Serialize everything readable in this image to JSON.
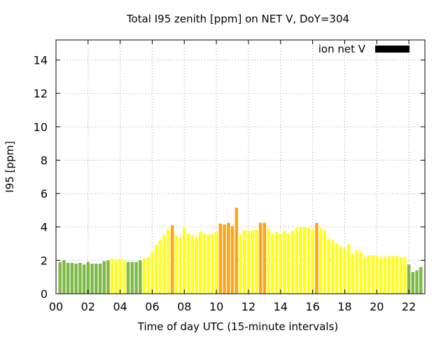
{
  "chart_data": {
    "type": "bar",
    "title": "Total I95 zenith [ppm] on NET V, DoY=304",
    "xlabel": "Time of day UTC (15-minute intervals)",
    "ylabel": "I95 [ppm]",
    "xlim": [
      0,
      23
    ],
    "ylim": [
      0,
      15.2
    ],
    "x_ticks": [
      0,
      2,
      4,
      6,
      8,
      10,
      12,
      14,
      16,
      18,
      20,
      22
    ],
    "x_tick_labels": [
      "00",
      "02",
      "04",
      "06",
      "08",
      "10",
      "12",
      "14",
      "16",
      "18",
      "20",
      "22"
    ],
    "y_ticks": [
      0,
      2,
      4,
      6,
      8,
      10,
      12,
      14
    ],
    "y_tick_labels": [
      "0",
      "2",
      "4",
      "6",
      "8",
      "10",
      "12",
      "14"
    ],
    "grid": true,
    "legend": {
      "label": "ion net V",
      "placement": "top-right",
      "color": "#000000"
    },
    "bar_interval_hours": 0.25,
    "colors": {
      "green": "#7cba45",
      "yellow": "#ffff19",
      "orange": "#ffa514"
    },
    "bars": [
      {
        "x": 0.25,
        "value": 1.9,
        "color": "green"
      },
      {
        "x": 0.5,
        "value": 2.0,
        "color": "green"
      },
      {
        "x": 0.75,
        "value": 1.85,
        "color": "green"
      },
      {
        "x": 1.0,
        "value": 1.85,
        "color": "green"
      },
      {
        "x": 1.25,
        "value": 1.8,
        "color": "green"
      },
      {
        "x": 1.5,
        "value": 1.85,
        "color": "green"
      },
      {
        "x": 1.75,
        "value": 1.75,
        "color": "green"
      },
      {
        "x": 2.0,
        "value": 1.9,
        "color": "green"
      },
      {
        "x": 2.25,
        "value": 1.8,
        "color": "green"
      },
      {
        "x": 2.5,
        "value": 1.8,
        "color": "green"
      },
      {
        "x": 2.75,
        "value": 1.8,
        "color": "green"
      },
      {
        "x": 3.0,
        "value": 1.95,
        "color": "green"
      },
      {
        "x": 3.25,
        "value": 2.0,
        "color": "green"
      },
      {
        "x": 3.5,
        "value": 2.1,
        "color": "yellow"
      },
      {
        "x": 3.75,
        "value": 2.0,
        "color": "yellow"
      },
      {
        "x": 4.0,
        "value": 2.1,
        "color": "yellow"
      },
      {
        "x": 4.25,
        "value": 2.0,
        "color": "yellow"
      },
      {
        "x": 4.5,
        "value": 1.9,
        "color": "green"
      },
      {
        "x": 4.75,
        "value": 1.9,
        "color": "green"
      },
      {
        "x": 5.0,
        "value": 1.9,
        "color": "green"
      },
      {
        "x": 5.25,
        "value": 2.0,
        "color": "green"
      },
      {
        "x": 5.5,
        "value": 2.1,
        "color": "yellow"
      },
      {
        "x": 5.75,
        "value": 2.2,
        "color": "yellow"
      },
      {
        "x": 6.0,
        "value": 2.5,
        "color": "yellow"
      },
      {
        "x": 6.25,
        "value": 2.9,
        "color": "yellow"
      },
      {
        "x": 6.5,
        "value": 3.2,
        "color": "yellow"
      },
      {
        "x": 6.75,
        "value": 3.5,
        "color": "yellow"
      },
      {
        "x": 7.0,
        "value": 3.85,
        "color": "yellow"
      },
      {
        "x": 7.25,
        "value": 4.1,
        "color": "orange"
      },
      {
        "x": 7.5,
        "value": 3.5,
        "color": "yellow"
      },
      {
        "x": 7.75,
        "value": 3.4,
        "color": "yellow"
      },
      {
        "x": 8.0,
        "value": 3.95,
        "color": "yellow"
      },
      {
        "x": 8.25,
        "value": 3.6,
        "color": "yellow"
      },
      {
        "x": 8.5,
        "value": 3.5,
        "color": "yellow"
      },
      {
        "x": 8.75,
        "value": 3.4,
        "color": "yellow"
      },
      {
        "x": 9.0,
        "value": 3.7,
        "color": "yellow"
      },
      {
        "x": 9.25,
        "value": 3.6,
        "color": "yellow"
      },
      {
        "x": 9.5,
        "value": 3.55,
        "color": "yellow"
      },
      {
        "x": 9.75,
        "value": 3.6,
        "color": "yellow"
      },
      {
        "x": 10.0,
        "value": 3.7,
        "color": "yellow"
      },
      {
        "x": 10.25,
        "value": 4.2,
        "color": "orange"
      },
      {
        "x": 10.5,
        "value": 4.15,
        "color": "orange"
      },
      {
        "x": 10.75,
        "value": 4.25,
        "color": "orange"
      },
      {
        "x": 11.0,
        "value": 4.05,
        "color": "orange"
      },
      {
        "x": 11.25,
        "value": 5.15,
        "color": "orange"
      },
      {
        "x": 11.5,
        "value": 3.55,
        "color": "yellow"
      },
      {
        "x": 11.75,
        "value": 3.8,
        "color": "yellow"
      },
      {
        "x": 12.0,
        "value": 3.75,
        "color": "yellow"
      },
      {
        "x": 12.25,
        "value": 3.8,
        "color": "yellow"
      },
      {
        "x": 12.5,
        "value": 3.85,
        "color": "yellow"
      },
      {
        "x": 12.75,
        "value": 4.25,
        "color": "orange"
      },
      {
        "x": 13.0,
        "value": 4.25,
        "color": "orange"
      },
      {
        "x": 13.25,
        "value": 3.9,
        "color": "yellow"
      },
      {
        "x": 13.5,
        "value": 3.6,
        "color": "yellow"
      },
      {
        "x": 13.75,
        "value": 3.7,
        "color": "yellow"
      },
      {
        "x": 14.0,
        "value": 3.6,
        "color": "yellow"
      },
      {
        "x": 14.25,
        "value": 3.75,
        "color": "yellow"
      },
      {
        "x": 14.5,
        "value": 3.6,
        "color": "yellow"
      },
      {
        "x": 14.75,
        "value": 3.75,
        "color": "yellow"
      },
      {
        "x": 15.0,
        "value": 3.95,
        "color": "yellow"
      },
      {
        "x": 15.25,
        "value": 4.0,
        "color": "yellow"
      },
      {
        "x": 15.5,
        "value": 4.0,
        "color": "yellow"
      },
      {
        "x": 15.75,
        "value": 3.95,
        "color": "yellow"
      },
      {
        "x": 16.0,
        "value": 3.85,
        "color": "yellow"
      },
      {
        "x": 16.25,
        "value": 4.25,
        "color": "orange"
      },
      {
        "x": 16.5,
        "value": 3.9,
        "color": "yellow"
      },
      {
        "x": 16.75,
        "value": 3.8,
        "color": "yellow"
      },
      {
        "x": 17.0,
        "value": 3.3,
        "color": "yellow"
      },
      {
        "x": 17.25,
        "value": 3.2,
        "color": "yellow"
      },
      {
        "x": 17.5,
        "value": 3.0,
        "color": "yellow"
      },
      {
        "x": 17.75,
        "value": 2.85,
        "color": "yellow"
      },
      {
        "x": 18.0,
        "value": 2.7,
        "color": "yellow"
      },
      {
        "x": 18.25,
        "value": 2.95,
        "color": "yellow"
      },
      {
        "x": 18.5,
        "value": 2.4,
        "color": "yellow"
      },
      {
        "x": 18.75,
        "value": 2.6,
        "color": "yellow"
      },
      {
        "x": 19.0,
        "value": 2.5,
        "color": "yellow"
      },
      {
        "x": 19.25,
        "value": 2.2,
        "color": "yellow"
      },
      {
        "x": 19.5,
        "value": 2.3,
        "color": "yellow"
      },
      {
        "x": 19.75,
        "value": 2.3,
        "color": "yellow"
      },
      {
        "x": 20.0,
        "value": 2.3,
        "color": "yellow"
      },
      {
        "x": 20.25,
        "value": 2.15,
        "color": "yellow"
      },
      {
        "x": 20.5,
        "value": 2.2,
        "color": "yellow"
      },
      {
        "x": 20.75,
        "value": 2.25,
        "color": "yellow"
      },
      {
        "x": 21.0,
        "value": 2.25,
        "color": "yellow"
      },
      {
        "x": 21.25,
        "value": 2.25,
        "color": "yellow"
      },
      {
        "x": 21.5,
        "value": 2.2,
        "color": "yellow"
      },
      {
        "x": 21.75,
        "value": 2.2,
        "color": "yellow"
      },
      {
        "x": 22.0,
        "value": 1.75,
        "color": "green"
      },
      {
        "x": 22.25,
        "value": 1.3,
        "color": "green"
      },
      {
        "x": 22.5,
        "value": 1.4,
        "color": "green"
      },
      {
        "x": 22.75,
        "value": 1.6,
        "color": "green"
      }
    ]
  }
}
